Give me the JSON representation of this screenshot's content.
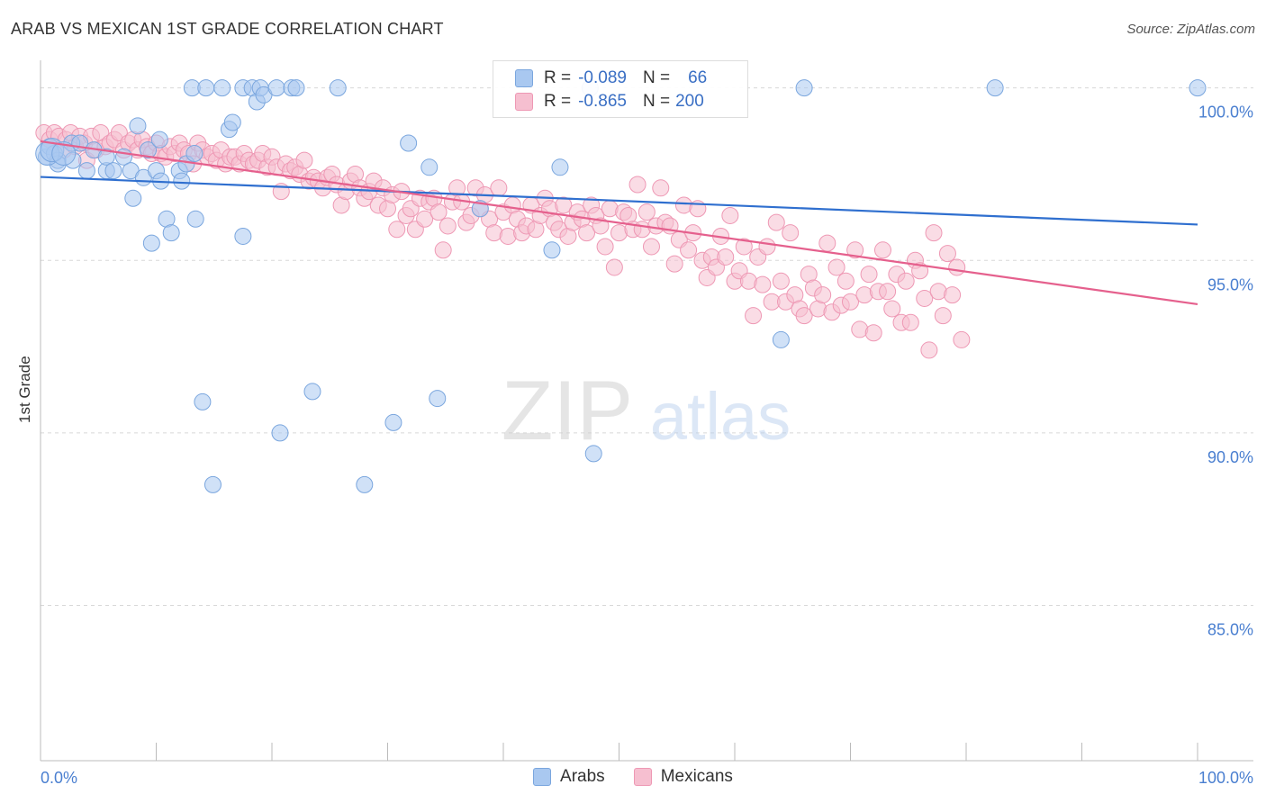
{
  "header": {
    "title": "ARAB VS MEXICAN 1ST GRADE CORRELATION CHART",
    "source": "Source: ZipAtlas.com"
  },
  "watermark": {
    "zip": "ZIP",
    "atlas": "atlas"
  },
  "legend": {
    "rows": [
      {
        "r_label": "R =",
        "r_value": "-0.089",
        "n_label": "N =",
        "n_value": "66"
      },
      {
        "r_label": "R =",
        "r_value": "-0.865",
        "n_label": "N =",
        "n_value": "200"
      }
    ]
  },
  "colors": {
    "arabs_fill": "#a9c8f0",
    "arabs_stroke": "#7aa6de",
    "arabs_line": "#2f6fcf",
    "mexicans_fill": "#f6bfd0",
    "mexicans_stroke": "#ee98b4",
    "mexicans_line": "#e5608d",
    "tick_label": "#4a7fd0",
    "grid": "#d8d8d8"
  },
  "chart_data": {
    "type": "scatter",
    "title": "ARAB VS MEXICAN 1ST GRADE CORRELATION CHART",
    "xlabel": "",
    "ylabel": "1st Grade",
    "xlim": [
      0,
      100
    ],
    "ylim": [
      80.5,
      100.8
    ],
    "x_tick_labels": [
      "0.0%",
      "100.0%"
    ],
    "y_ticks": [
      100,
      95,
      90,
      85
    ],
    "y_tick_labels": [
      "100.0%",
      "95.0%",
      "90.0%",
      "85.0%"
    ],
    "grid": true,
    "legend_position": "top-center",
    "series": [
      {
        "name": "Arabs",
        "r": -0.089,
        "n": 66,
        "trend": {
          "x": [
            0,
            100
          ],
          "y": [
            97.42,
            96.04
          ]
        },
        "points": [
          [
            0.5,
            98.0
          ],
          [
            0.8,
            98.3
          ],
          [
            1.2,
            98.1
          ],
          [
            1.5,
            97.9
          ],
          [
            1.5,
            97.8
          ],
          [
            2.7,
            98.4
          ],
          [
            2.8,
            97.9
          ],
          [
            3.4,
            98.4
          ],
          [
            4.0,
            97.6
          ],
          [
            4.6,
            98.2
          ],
          [
            5.7,
            97.6
          ],
          [
            5.7,
            98.0
          ],
          [
            6.3,
            97.6
          ],
          [
            7.2,
            98.0
          ],
          [
            7.8,
            97.6
          ],
          [
            8.0,
            96.8
          ],
          [
            8.4,
            98.9
          ],
          [
            8.9,
            97.4
          ],
          [
            9.3,
            98.2
          ],
          [
            9.6,
            95.5
          ],
          [
            10.0,
            97.6
          ],
          [
            10.3,
            98.5
          ],
          [
            10.4,
            97.3
          ],
          [
            10.9,
            96.2
          ],
          [
            11.3,
            95.8
          ],
          [
            12.0,
            97.6
          ],
          [
            12.2,
            97.3
          ],
          [
            12.6,
            97.8
          ],
          [
            13.3,
            98.1
          ],
          [
            13.4,
            96.2
          ],
          [
            13.1,
            100.0
          ],
          [
            14.0,
            90.9
          ],
          [
            14.3,
            100.0
          ],
          [
            14.9,
            88.5
          ],
          [
            15.7,
            100.0
          ],
          [
            16.3,
            98.8
          ],
          [
            16.6,
            99.0
          ],
          [
            17.5,
            95.7
          ],
          [
            17.5,
            100.0
          ],
          [
            18.3,
            100.0
          ],
          [
            18.7,
            99.6
          ],
          [
            19.0,
            100.0
          ],
          [
            19.3,
            99.8
          ],
          [
            20.4,
            100.0
          ],
          [
            20.7,
            90.0
          ],
          [
            21.7,
            100.0
          ],
          [
            22.1,
            100.0
          ],
          [
            23.5,
            91.2
          ],
          [
            25.7,
            100.0
          ],
          [
            28.0,
            88.5
          ],
          [
            30.5,
            90.3
          ],
          [
            31.8,
            98.4
          ],
          [
            33.6,
            97.7
          ],
          [
            34.3,
            91.0
          ],
          [
            38.0,
            96.5
          ],
          [
            44.2,
            95.3
          ],
          [
            44.9,
            97.7
          ],
          [
            47.5,
            100.0
          ],
          [
            47.8,
            89.4
          ],
          [
            66.0,
            100.0
          ],
          [
            64.0,
            92.7
          ],
          [
            82.5,
            100.0
          ],
          [
            100,
            100.0
          ],
          [
            0.6,
            98.1
          ],
          [
            1.0,
            98.2
          ],
          [
            2.0,
            98.1
          ]
        ]
      },
      {
        "name": "Mexicans",
        "r": -0.865,
        "n": 200,
        "trend": {
          "x": [
            0,
            100
          ],
          "y": [
            98.45,
            93.73
          ]
        },
        "points": [
          [
            0.3,
            98.7
          ],
          [
            0.8,
            98.5
          ],
          [
            1.2,
            98.7
          ],
          [
            1.6,
            98.6
          ],
          [
            2.0,
            98.2
          ],
          [
            2.2,
            98.5
          ],
          [
            2.6,
            98.7
          ],
          [
            3.0,
            98.3
          ],
          [
            3.4,
            98.6
          ],
          [
            3.8,
            98.4
          ],
          [
            4.0,
            97.9
          ],
          [
            4.4,
            98.6
          ],
          [
            4.8,
            98.2
          ],
          [
            5.2,
            98.7
          ],
          [
            5.6,
            98.3
          ],
          [
            6.0,
            98.4
          ],
          [
            6.4,
            98.5
          ],
          [
            6.8,
            98.7
          ],
          [
            7.2,
            98.2
          ],
          [
            7.6,
            98.4
          ],
          [
            8.0,
            98.5
          ],
          [
            8.4,
            98.2
          ],
          [
            8.8,
            98.5
          ],
          [
            9.2,
            98.3
          ],
          [
            9.6,
            98.1
          ],
          [
            10.0,
            98.4
          ],
          [
            10.4,
            98.1
          ],
          [
            10.8,
            98.0
          ],
          [
            11.2,
            98.3
          ],
          [
            11.6,
            98.1
          ],
          [
            12.0,
            98.4
          ],
          [
            12.4,
            98.2
          ],
          [
            12.8,
            98.1
          ],
          [
            13.2,
            97.8
          ],
          [
            13.6,
            98.4
          ],
          [
            14.0,
            98.2
          ],
          [
            14.4,
            98.0
          ],
          [
            14.8,
            98.1
          ],
          [
            15.2,
            97.9
          ],
          [
            15.6,
            98.2
          ],
          [
            16.0,
            97.8
          ],
          [
            16.4,
            98.0
          ],
          [
            16.8,
            98.0
          ],
          [
            17.2,
            97.8
          ],
          [
            17.6,
            98.1
          ],
          [
            18.0,
            97.9
          ],
          [
            18.4,
            97.8
          ],
          [
            18.8,
            97.9
          ],
          [
            19.2,
            98.1
          ],
          [
            19.6,
            97.7
          ],
          [
            20.0,
            98.0
          ],
          [
            20.4,
            97.7
          ],
          [
            20.8,
            97.0
          ],
          [
            21.2,
            97.8
          ],
          [
            21.6,
            97.6
          ],
          [
            22.0,
            97.7
          ],
          [
            22.4,
            97.5
          ],
          [
            22.8,
            97.9
          ],
          [
            23.2,
            97.3
          ],
          [
            23.6,
            97.4
          ],
          [
            24.0,
            97.3
          ],
          [
            24.4,
            97.1
          ],
          [
            24.8,
            97.4
          ],
          [
            25.2,
            97.5
          ],
          [
            25.6,
            97.2
          ],
          [
            26.0,
            96.6
          ],
          [
            26.4,
            97.0
          ],
          [
            26.8,
            97.3
          ],
          [
            27.2,
            97.5
          ],
          [
            27.6,
            97.1
          ],
          [
            28.0,
            96.8
          ],
          [
            28.4,
            97.0
          ],
          [
            28.8,
            97.3
          ],
          [
            29.2,
            96.6
          ],
          [
            29.6,
            97.1
          ],
          [
            30.0,
            96.5
          ],
          [
            30.4,
            96.9
          ],
          [
            30.8,
            95.9
          ],
          [
            31.2,
            97.0
          ],
          [
            31.6,
            96.3
          ],
          [
            32.0,
            96.5
          ],
          [
            32.4,
            95.9
          ],
          [
            32.8,
            96.8
          ],
          [
            33.2,
            96.2
          ],
          [
            33.6,
            96.7
          ],
          [
            34.0,
            96.8
          ],
          [
            34.4,
            96.4
          ],
          [
            34.8,
            95.3
          ],
          [
            35.2,
            96.0
          ],
          [
            35.6,
            96.7
          ],
          [
            36.0,
            97.1
          ],
          [
            36.4,
            96.7
          ],
          [
            36.8,
            96.1
          ],
          [
            37.2,
            96.3
          ],
          [
            37.6,
            97.1
          ],
          [
            38.0,
            96.5
          ],
          [
            38.4,
            96.9
          ],
          [
            38.8,
            96.2
          ],
          [
            39.2,
            95.8
          ],
          [
            39.6,
            97.1
          ],
          [
            40.0,
            96.4
          ],
          [
            40.4,
            95.7
          ],
          [
            40.8,
            96.6
          ],
          [
            41.2,
            96.2
          ],
          [
            41.6,
            95.8
          ],
          [
            42.0,
            96.0
          ],
          [
            42.4,
            96.6
          ],
          [
            42.8,
            95.9
          ],
          [
            43.2,
            96.3
          ],
          [
            43.6,
            96.8
          ],
          [
            44.0,
            96.5
          ],
          [
            44.4,
            96.1
          ],
          [
            44.8,
            95.9
          ],
          [
            45.2,
            96.6
          ],
          [
            45.6,
            95.7
          ],
          [
            46.0,
            96.1
          ],
          [
            46.4,
            96.4
          ],
          [
            46.8,
            96.2
          ],
          [
            47.2,
            95.8
          ],
          [
            47.6,
            96.6
          ],
          [
            48.0,
            96.3
          ],
          [
            48.4,
            96.0
          ],
          [
            48.8,
            95.4
          ],
          [
            49.2,
            96.5
          ],
          [
            49.6,
            94.8
          ],
          [
            50.0,
            95.8
          ],
          [
            50.4,
            96.4
          ],
          [
            50.8,
            96.3
          ],
          [
            51.2,
            95.9
          ],
          [
            51.6,
            97.2
          ],
          [
            52.0,
            95.9
          ],
          [
            52.4,
            96.4
          ],
          [
            52.8,
            95.4
          ],
          [
            53.2,
            96.0
          ],
          [
            53.6,
            97.1
          ],
          [
            54.0,
            96.1
          ],
          [
            54.4,
            96.0
          ],
          [
            54.8,
            94.9
          ],
          [
            55.2,
            95.6
          ],
          [
            55.6,
            96.6
          ],
          [
            56.0,
            95.3
          ],
          [
            56.4,
            95.8
          ],
          [
            56.8,
            96.5
          ],
          [
            57.2,
            95.0
          ],
          [
            57.6,
            94.5
          ],
          [
            58.0,
            95.1
          ],
          [
            58.4,
            94.8
          ],
          [
            58.8,
            95.7
          ],
          [
            59.2,
            95.1
          ],
          [
            59.6,
            96.3
          ],
          [
            60.0,
            94.4
          ],
          [
            60.4,
            94.7
          ],
          [
            60.8,
            95.4
          ],
          [
            61.2,
            94.4
          ],
          [
            61.6,
            93.4
          ],
          [
            62.0,
            95.1
          ],
          [
            62.4,
            94.3
          ],
          [
            62.8,
            95.4
          ],
          [
            63.2,
            93.8
          ],
          [
            63.6,
            96.1
          ],
          [
            64.0,
            94.4
          ],
          [
            64.4,
            93.8
          ],
          [
            64.8,
            95.8
          ],
          [
            65.2,
            94.0
          ],
          [
            65.6,
            93.6
          ],
          [
            66.0,
            93.4
          ],
          [
            66.4,
            94.6
          ],
          [
            66.8,
            94.2
          ],
          [
            67.2,
            93.6
          ],
          [
            67.6,
            94.0
          ],
          [
            68.0,
            95.5
          ],
          [
            68.4,
            93.5
          ],
          [
            68.8,
            94.8
          ],
          [
            69.2,
            93.7
          ],
          [
            69.6,
            94.4
          ],
          [
            70.0,
            93.8
          ],
          [
            70.4,
            95.3
          ],
          [
            70.8,
            93.0
          ],
          [
            71.2,
            94.0
          ],
          [
            71.6,
            94.6
          ],
          [
            72.0,
            92.9
          ],
          [
            72.4,
            94.1
          ],
          [
            72.8,
            95.3
          ],
          [
            73.2,
            94.1
          ],
          [
            73.6,
            93.6
          ],
          [
            74.0,
            94.6
          ],
          [
            74.4,
            93.2
          ],
          [
            74.8,
            94.4
          ],
          [
            75.2,
            93.2
          ],
          [
            75.6,
            95.0
          ],
          [
            76.0,
            94.7
          ],
          [
            76.4,
            93.9
          ],
          [
            76.8,
            92.4
          ],
          [
            77.2,
            95.8
          ],
          [
            77.6,
            94.1
          ],
          [
            78.0,
            93.4
          ],
          [
            78.4,
            95.2
          ],
          [
            78.8,
            94.0
          ],
          [
            79.2,
            94.8
          ],
          [
            79.6,
            92.7
          ]
        ]
      }
    ]
  },
  "bottom_legend": {
    "items": [
      {
        "label": "Arabs"
      },
      {
        "label": "Mexicans"
      }
    ]
  }
}
